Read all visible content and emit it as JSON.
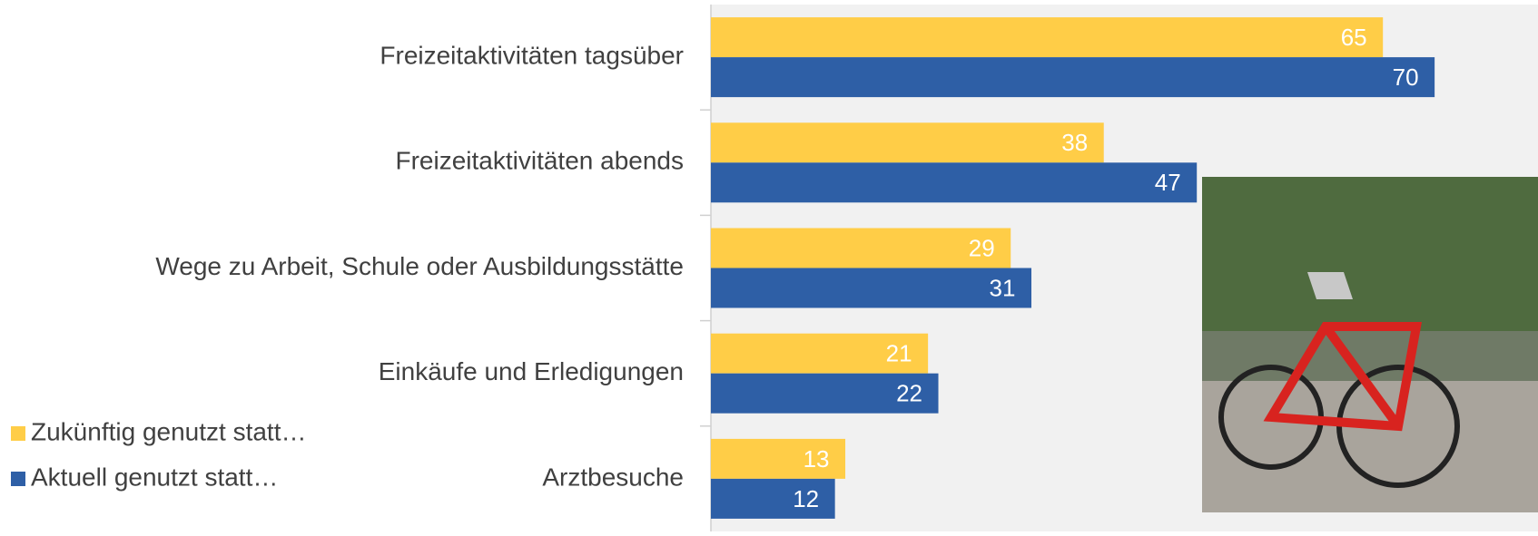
{
  "chart_data": {
    "type": "hbar",
    "categories": [
      "Freizeitaktivitäten tagsüber",
      "Freizeitaktivitäten abends",
      "Wege zu Arbeit, Schule oder Ausbildungsstätte",
      "Einkäufe und Erledigungen",
      "Arztbesuche"
    ],
    "series": [
      {
        "name": "Zukünftig genutzt statt…",
        "color": "#ffcd47",
        "values": [
          65,
          38,
          29,
          21,
          13
        ]
      },
      {
        "name": "Aktuell genutzt statt…",
        "color": "#2e5fa6",
        "values": [
          70,
          47,
          31,
          22,
          12
        ]
      }
    ],
    "xlim": [
      0,
      80
    ]
  }
}
